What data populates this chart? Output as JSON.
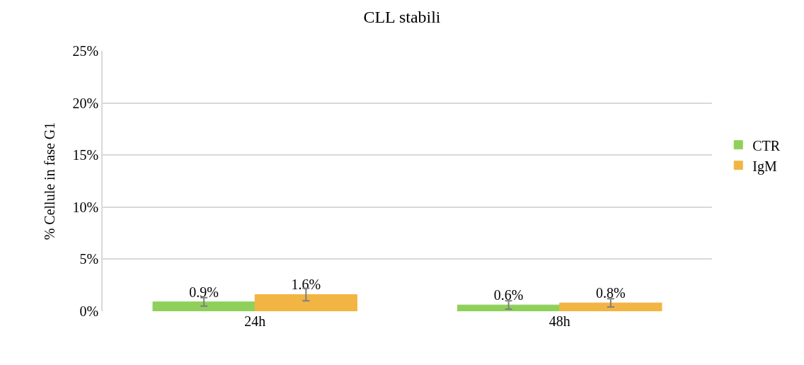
{
  "chart_data": {
    "type": "bar",
    "title": "CLL stabili",
    "ylabel": "% Cellule in fase G1",
    "categories": [
      "24h",
      "48h"
    ],
    "series": [
      {
        "name": "CTR",
        "color": "#8fd05a",
        "values": [
          0.9,
          0.6
        ],
        "errors": [
          0.4,
          0.4
        ],
        "value_labels": [
          "0.9%",
          "0.6%"
        ]
      },
      {
        "name": "IgM",
        "color": "#f2b443",
        "values": [
          1.6,
          0.8
        ],
        "errors": [
          0.6,
          0.4
        ],
        "value_labels": [
          "1.6%",
          "0.8%"
        ]
      }
    ],
    "ylim": [
      0,
      25
    ],
    "yticks": [
      {
        "value": 0,
        "label": "0%"
      },
      {
        "value": 5,
        "label": "5%"
      },
      {
        "value": 10,
        "label": "10%"
      },
      {
        "value": 15,
        "label": "15%"
      },
      {
        "value": 20,
        "label": "20%"
      },
      {
        "value": 25,
        "label": "25%"
      }
    ],
    "grid": "y",
    "legend": "right"
  }
}
